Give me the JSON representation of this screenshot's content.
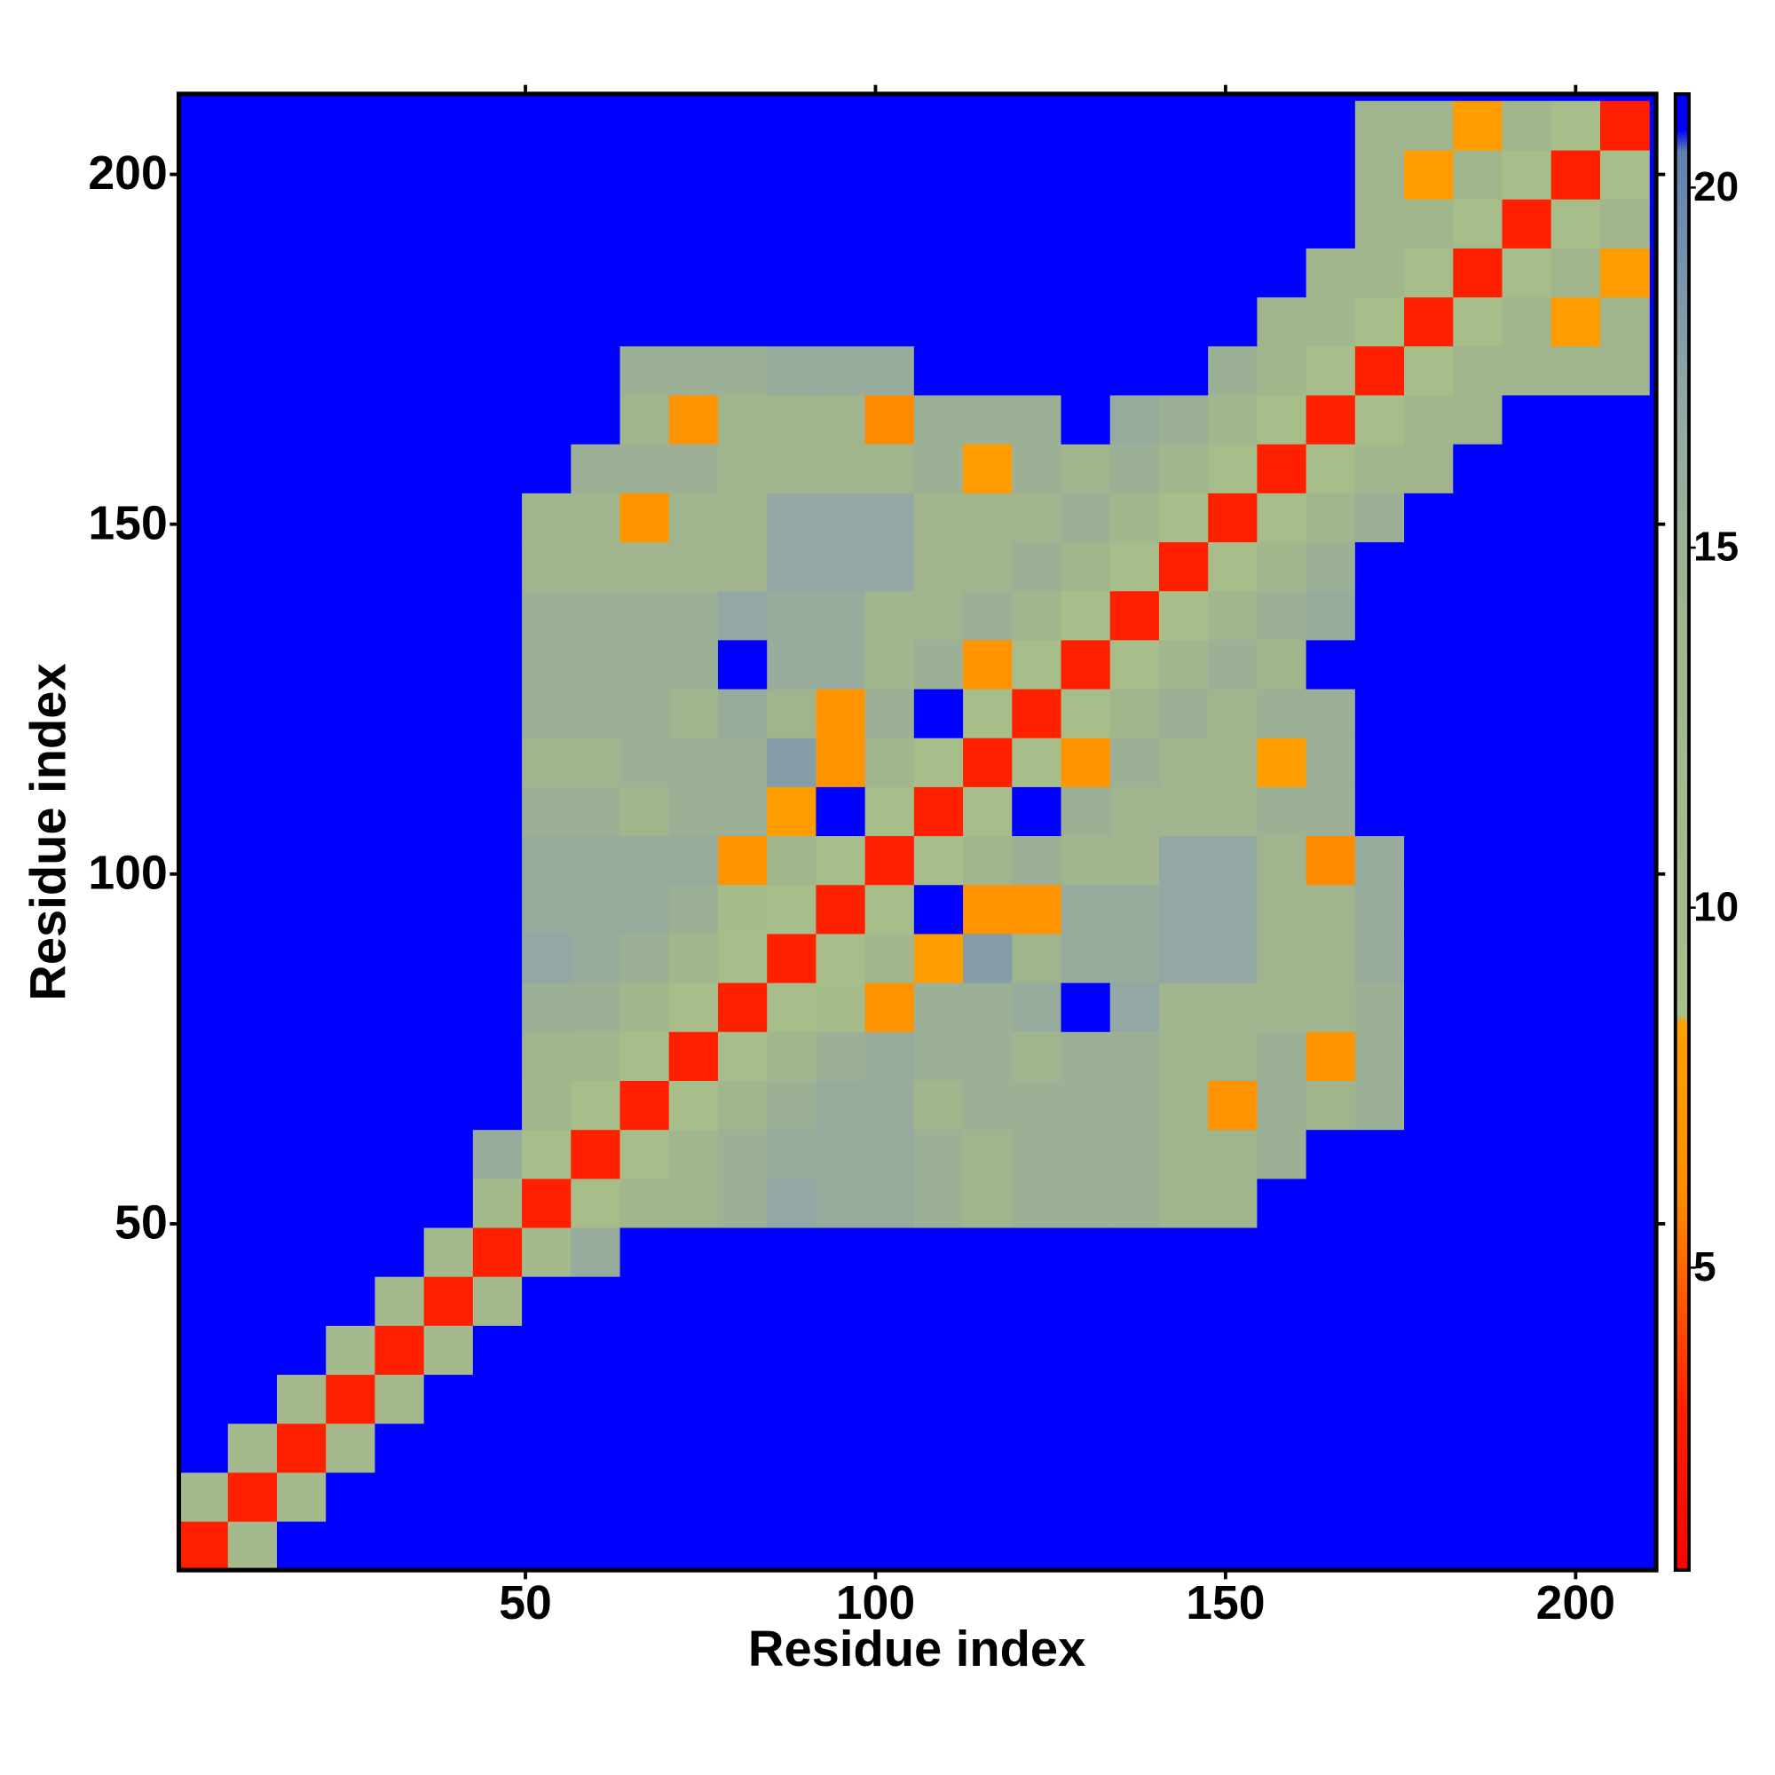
{
  "chart_data": {
    "type": "heatmap",
    "x_label": "Residue index",
    "y_label": "Residue index",
    "xlim": [
      0.5,
      211.5
    ],
    "ylim": [
      0.5,
      211.5
    ],
    "xticks": [
      50,
      100,
      150,
      200
    ],
    "yticks": [
      50,
      100,
      150,
      200
    ],
    "zlim": [
      0.8,
      21.3
    ],
    "zticks": [
      5,
      10,
      15,
      20
    ],
    "background_color": "#0000ff",
    "colorscale": [
      [
        0.8,
        "#ff0000"
      ],
      [
        3,
        "#ff2000"
      ],
      [
        6,
        "#ff8c00"
      ],
      [
        8.4,
        "#ffa000"
      ],
      [
        8.5,
        "#a8bf8a"
      ],
      [
        14,
        "#a0b48e"
      ],
      [
        17,
        "#93a8a4"
      ],
      [
        20.5,
        "#6080b0"
      ],
      [
        20.8,
        "#0000ff"
      ],
      [
        21.3,
        "#0000ff"
      ]
    ],
    "x": [
      4,
      11,
      18,
      25,
      32,
      39,
      46,
      53,
      60,
      67,
      74,
      81,
      88,
      95,
      102,
      109,
      116,
      123,
      130,
      137,
      144,
      151,
      158,
      165,
      172,
      179,
      186,
      193,
      200,
      207
    ],
    "z": [
      [
        3
      ],
      [
        11,
        3
      ],
      [
        21,
        11,
        3
      ],
      [
        21,
        21,
        11,
        3
      ],
      [
        21,
        21,
        21,
        11,
        3
      ],
      [
        21,
        21,
        21,
        21,
        11,
        3
      ],
      [
        21,
        21,
        21,
        21,
        21,
        11,
        3
      ],
      [
        21,
        21,
        21,
        21,
        21,
        21,
        11,
        3
      ],
      [
        21,
        21,
        21,
        21,
        21,
        21,
        16,
        9,
        3
      ],
      [
        21,
        21,
        21,
        21,
        21,
        21,
        21,
        13,
        9,
        3
      ],
      [
        21,
        21,
        21,
        21,
        21,
        21,
        21,
        14,
        13,
        9,
        3
      ],
      [
        21,
        21,
        21,
        21,
        21,
        21,
        21,
        15,
        15,
        13,
        9,
        3
      ],
      [
        21,
        21,
        21,
        21,
        21,
        21,
        21,
        17,
        16,
        15,
        13,
        9,
        3
      ],
      [
        21,
        21,
        21,
        21,
        21,
        21,
        21,
        16,
        16,
        16,
        15,
        10,
        9,
        3
      ],
      [
        21,
        21,
        21,
        21,
        21,
        21,
        21,
        16,
        16,
        16,
        16,
        7,
        13,
        9,
        3
      ],
      [
        21,
        21,
        21,
        21,
        21,
        21,
        21,
        15,
        15,
        13,
        15,
        15,
        8,
        21,
        9,
        3
      ],
      [
        21,
        21,
        21,
        21,
        21,
        21,
        21,
        14,
        14,
        15,
        15,
        15,
        18,
        7,
        13,
        9,
        3
      ],
      [
        21,
        21,
        21,
        21,
        21,
        21,
        21,
        15,
        15,
        15,
        14,
        16,
        14,
        7,
        15,
        21,
        9,
        3
      ],
      [
        21,
        21,
        21,
        21,
        21,
        21,
        21,
        15,
        15,
        15,
        15,
        21,
        16,
        16,
        13,
        15,
        7,
        9,
        3
      ],
      [
        21,
        21,
        21,
        21,
        21,
        21,
        21,
        15,
        15,
        15,
        15,
        17,
        16,
        16,
        13,
        14,
        15,
        13,
        9,
        3
      ],
      [
        21,
        21,
        21,
        21,
        21,
        21,
        21,
        14,
        14,
        14,
        14,
        14,
        17,
        17,
        17,
        14,
        14,
        15,
        13,
        9,
        3
      ],
      [
        21,
        21,
        21,
        21,
        21,
        21,
        21,
        14,
        14,
        7,
        14,
        14,
        17,
        17,
        17,
        14,
        14,
        14,
        15,
        13,
        9,
        3
      ],
      [
        21,
        21,
        21,
        21,
        21,
        21,
        21,
        21,
        15,
        15,
        15,
        14,
        14,
        14,
        14,
        15,
        8,
        15,
        13,
        15,
        13,
        9,
        3
      ],
      [
        21,
        21,
        21,
        21,
        21,
        21,
        21,
        21,
        21,
        14,
        7,
        14,
        14,
        14,
        6,
        15,
        15,
        15,
        21,
        16,
        15,
        13,
        9,
        3
      ],
      [
        21,
        21,
        21,
        21,
        21,
        21,
        21,
        21,
        21,
        15,
        15,
        15,
        16,
        16,
        16,
        21,
        21,
        21,
        21,
        21,
        21,
        15,
        13,
        9,
        3
      ],
      [
        21,
        21,
        21,
        21,
        21,
        21,
        21,
        21,
        21,
        21,
        21,
        21,
        21,
        21,
        21,
        21,
        21,
        21,
        21,
        21,
        21,
        21,
        14,
        13,
        9,
        3
      ],
      [
        21,
        21,
        21,
        21,
        21,
        21,
        21,
        21,
        21,
        21,
        21,
        21,
        21,
        21,
        21,
        21,
        21,
        21,
        21,
        21,
        21,
        21,
        21,
        14,
        13,
        9,
        3
      ],
      [
        21,
        21,
        21,
        21,
        21,
        21,
        21,
        21,
        21,
        21,
        21,
        21,
        21,
        21,
        21,
        21,
        21,
        21,
        21,
        21,
        21,
        21,
        21,
        21,
        14,
        13,
        9,
        3
      ],
      [
        21,
        21,
        21,
        21,
        21,
        21,
        21,
        21,
        21,
        21,
        21,
        21,
        21,
        21,
        21,
        21,
        21,
        21,
        21,
        21,
        21,
        21,
        21,
        21,
        14,
        8,
        13,
        9,
        3
      ],
      [
        21,
        21,
        21,
        21,
        21,
        21,
        21,
        21,
        21,
        21,
        21,
        21,
        21,
        21,
        21,
        21,
        21,
        21,
        21,
        21,
        21,
        21,
        21,
        21,
        14,
        14,
        8,
        13,
        9,
        3
      ]
    ]
  }
}
